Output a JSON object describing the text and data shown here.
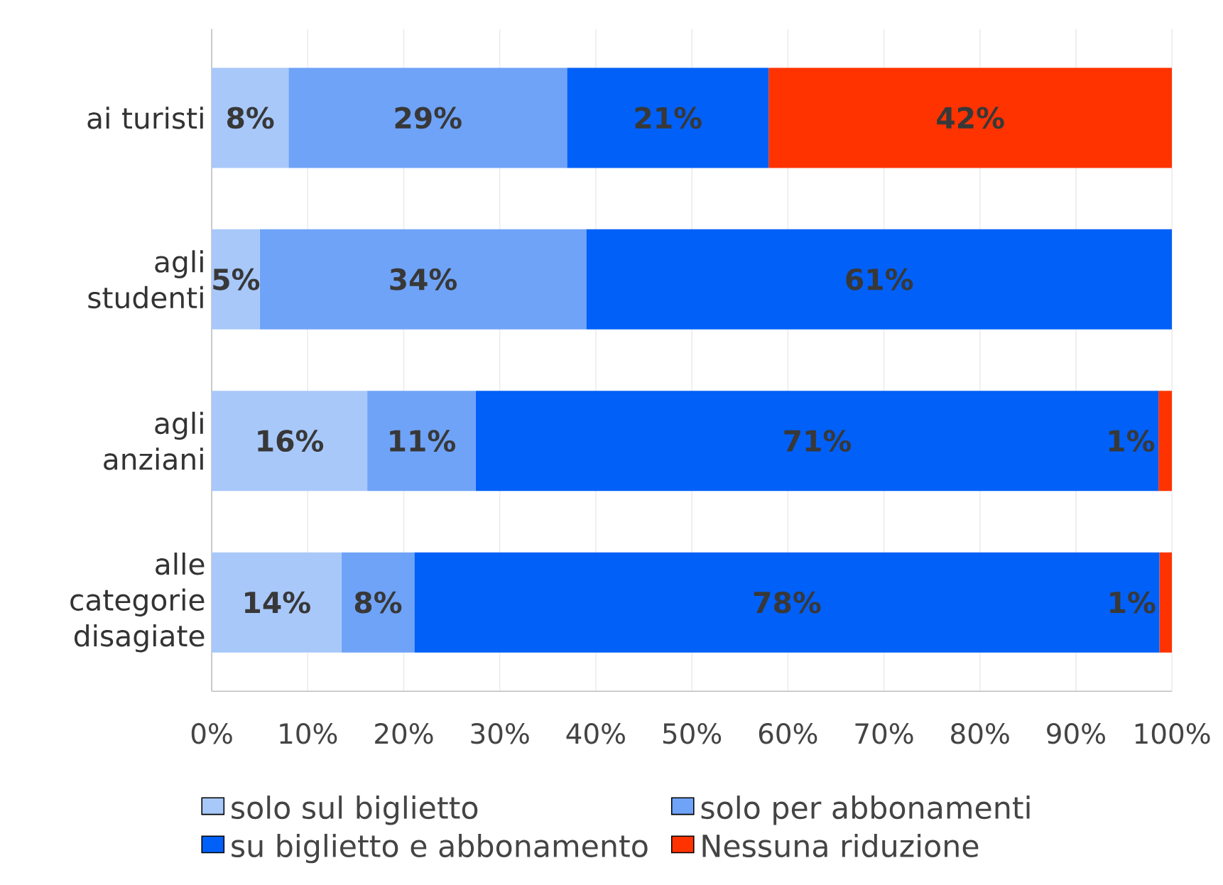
{
  "chart_data": {
    "type": "bar",
    "orientation": "horizontal",
    "stacked": true,
    "categories": [
      "ai turisti",
      "agli studenti",
      "agli anziani",
      "alle categorie disagiate"
    ],
    "series": [
      {
        "name": "solo sul biglietto",
        "color": "#a8c8fa",
        "values": [
          8,
          5,
          16.2,
          13.5
        ],
        "value_labels": [
          "8%",
          "5%",
          "16%",
          "14%"
        ]
      },
      {
        "name": "solo per abbonamenti",
        "color": "#6fa3f7",
        "values": [
          29,
          34,
          11.3,
          7.6
        ],
        "value_labels": [
          "29%",
          "34%",
          "11%",
          "8%"
        ]
      },
      {
        "name": "su biglietto e abbonamento",
        "color": "#0060f8",
        "values": [
          21,
          61,
          71.1,
          77.6
        ],
        "value_labels": [
          "21%",
          "61%",
          "71%",
          "78%"
        ]
      },
      {
        "name": "Nessuna riduzione",
        "color": "#ff3300",
        "values": [
          42,
          null,
          1.4,
          1.3
        ],
        "value_labels": [
          "42%",
          null,
          "1%",
          "1%"
        ]
      }
    ],
    "xlim": [
      0,
      100
    ],
    "xticks": [
      {
        "value": 0,
        "label": "0%"
      },
      {
        "value": 10,
        "label": "10%"
      },
      {
        "value": 20,
        "label": "20%"
      },
      {
        "value": 30,
        "label": "30%"
      },
      {
        "value": 40,
        "label": "40%"
      },
      {
        "value": 50,
        "label": "50%"
      },
      {
        "value": 60,
        "label": "60%"
      },
      {
        "value": 70,
        "label": "70%"
      },
      {
        "value": 80,
        "label": "80%"
      },
      {
        "value": 90,
        "label": "90%"
      },
      {
        "value": 100,
        "label": "100%"
      }
    ],
    "grid": "x",
    "legend": "bottom"
  }
}
